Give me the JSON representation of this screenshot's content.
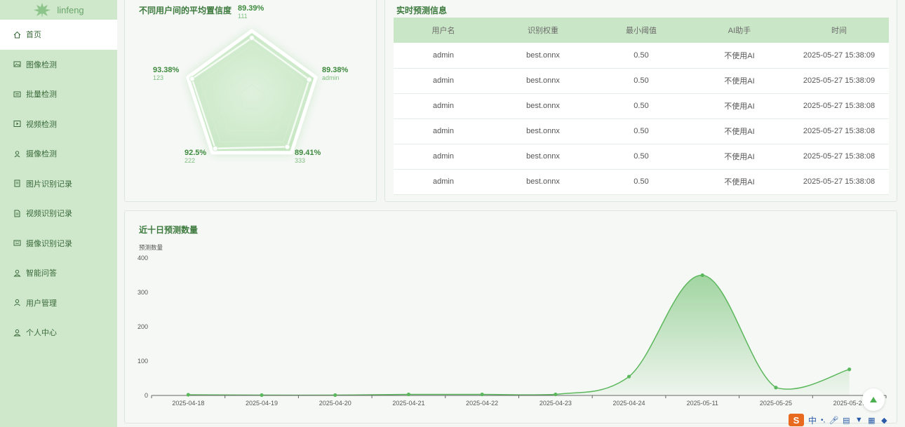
{
  "sidebar": {
    "brand": "linfeng",
    "items": [
      {
        "label": "首页",
        "icon": "home-icon",
        "active": true
      },
      {
        "label": "图像检测",
        "icon": "image-icon"
      },
      {
        "label": "批量检测",
        "icon": "batch-icon"
      },
      {
        "label": "视频检测",
        "icon": "video-icon"
      },
      {
        "label": "摄像检测",
        "icon": "camera-icon"
      },
      {
        "label": "图片识别记录",
        "icon": "image-record-icon"
      },
      {
        "label": "视频识别记录",
        "icon": "video-record-icon"
      },
      {
        "label": "摄像识别记录",
        "icon": "camera-record-icon"
      },
      {
        "label": "智能问答",
        "icon": "chat-icon"
      },
      {
        "label": "用户管理",
        "icon": "user-manage-icon"
      },
      {
        "label": "个人中心",
        "icon": "profile-icon"
      }
    ]
  },
  "radar": {
    "title": "不同用户间的平均置信度",
    "points": [
      {
        "pct": "89.39%",
        "user": "111",
        "value": 89.39
      },
      {
        "pct": "89.38%",
        "user": "admin",
        "value": 89.38
      },
      {
        "pct": "89.41%",
        "user": "333",
        "value": 89.41
      },
      {
        "pct": "92.5%",
        "user": "222",
        "value": 92.5
      },
      {
        "pct": "93.38%",
        "user": "123",
        "value": 93.38
      }
    ]
  },
  "table": {
    "title": "实时预测信息",
    "headers": [
      "用户名",
      "识别权重",
      "最小阈值",
      "AI助手",
      "时间"
    ],
    "rows": [
      [
        "admin",
        "best.onnx",
        "0.50",
        "不使用AI",
        "2025-05-27 15:38:09"
      ],
      [
        "admin",
        "best.onnx",
        "0.50",
        "不使用AI",
        "2025-05-27 15:38:09"
      ],
      [
        "admin",
        "best.onnx",
        "0.50",
        "不使用AI",
        "2025-05-27 15:38:08"
      ],
      [
        "admin",
        "best.onnx",
        "0.50",
        "不使用AI",
        "2025-05-27 15:38:08"
      ],
      [
        "admin",
        "best.onnx",
        "0.50",
        "不使用AI",
        "2025-05-27 15:38:08"
      ],
      [
        "admin",
        "best.onnx",
        "0.50",
        "不使用AI",
        "2025-05-27 15:38:08"
      ]
    ]
  },
  "chart_data": {
    "type": "area",
    "title": "近十日预测数量",
    "ylabel": "预测数量",
    "xlabel": "",
    "categories": [
      "2025-04-18",
      "2025-04-19",
      "2025-04-20",
      "2025-04-21",
      "2025-04-22",
      "2025-04-23",
      "2025-04-24",
      "2025-05-11",
      "2025-05-25",
      "2025-05-27"
    ],
    "series": [
      {
        "values": [
          2,
          1,
          1,
          3,
          3,
          3,
          55,
          350,
          23,
          76
        ]
      }
    ],
    "yticks": [
      0,
      100,
      200,
      300,
      400
    ],
    "ylim": [
      0,
      400
    ],
    "grid": false,
    "color": "#5cb85c"
  },
  "ime": {
    "lang": "中",
    "punct": "•,"
  }
}
